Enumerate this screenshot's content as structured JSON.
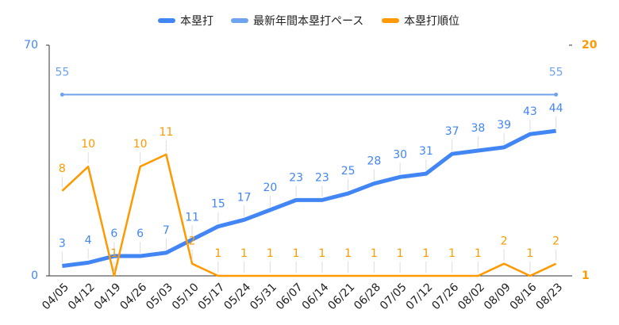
{
  "chart_data": {
    "type": "line",
    "categories": [
      "04/05",
      "04/12",
      "04/19",
      "04/26",
      "05/03",
      "05/10",
      "05/17",
      "05/24",
      "05/31",
      "06/07",
      "06/14",
      "06/21",
      "06/28",
      "07/05",
      "07/12",
      "07/26",
      "08/02",
      "08/09",
      "08/16",
      "08/23"
    ],
    "series": [
      {
        "name": "本塁打",
        "color": "#4285f4",
        "values": [
          3,
          4,
          6,
          6,
          7,
          11,
          15,
          17,
          20,
          23,
          23,
          25,
          28,
          30,
          31,
          37,
          38,
          39,
          43,
          44
        ]
      },
      {
        "name": "最新年間本塁打ペース",
        "color": "#6fa3ef",
        "values": [
          55,
          55,
          55,
          55,
          55,
          55,
          55,
          55,
          55,
          55,
          55,
          55,
          55,
          55,
          55,
          55,
          55,
          55,
          55,
          55
        ]
      },
      {
        "name": "本塁打順位",
        "color": "#ff9900",
        "axis": "y2",
        "values": [
          8,
          10,
          1,
          10,
          11,
          2,
          1,
          1,
          1,
          1,
          1,
          1,
          1,
          1,
          1,
          1,
          1,
          2,
          1,
          2
        ]
      }
    ],
    "ylim": [
      0,
      70
    ],
    "yticks": [
      0,
      70
    ],
    "y2lim": [
      1,
      20
    ],
    "y2ticks": [
      1,
      20
    ],
    "legend": "top"
  }
}
